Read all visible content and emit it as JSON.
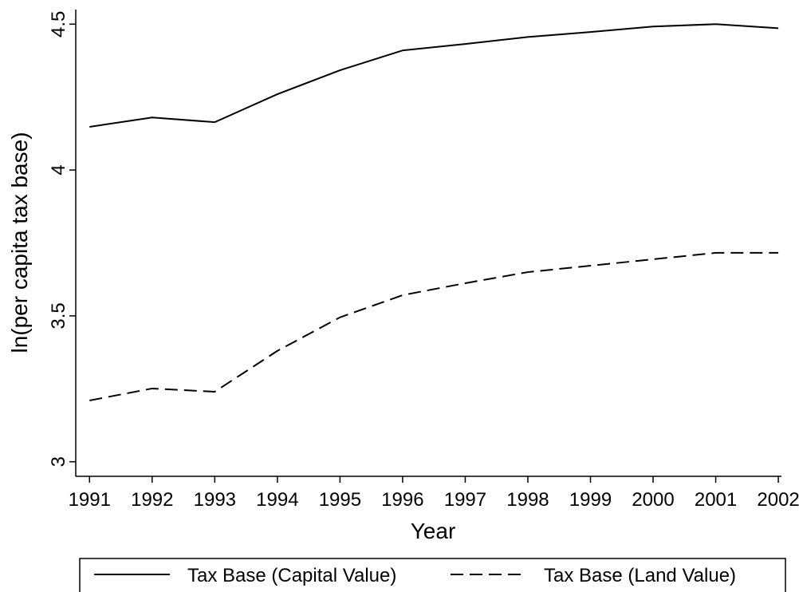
{
  "chart_data": {
    "type": "line",
    "x": [
      1991,
      1992,
      1993,
      1994,
      1995,
      1996,
      1997,
      1998,
      1999,
      2000,
      2001,
      2002
    ],
    "series": [
      {
        "name": "Tax Base (Capital Value)",
        "color": "#000000",
        "dash": "solid",
        "values": [
          4.148,
          4.18,
          4.164,
          4.26,
          4.342,
          4.41,
          4.432,
          4.456,
          4.473,
          4.492,
          4.5,
          4.486
        ]
      },
      {
        "name": "Tax Base (Land Value)",
        "color": "#000000",
        "dash": "dashed",
        "values": [
          3.21,
          3.251,
          3.24,
          3.38,
          3.495,
          3.571,
          3.612,
          3.65,
          3.672,
          3.694,
          3.716,
          3.716
        ]
      }
    ],
    "xlabel": "Year",
    "ylabel": "ln(per capita tax base)",
    "xlim": [
      1990.78,
      2002.05
    ],
    "xticks": [
      1991,
      1992,
      1993,
      1994,
      1995,
      1996,
      1997,
      1998,
      1999,
      2000,
      2001,
      2002
    ],
    "ylim": [
      2.95,
      4.55
    ],
    "yticks": [
      3,
      {
        "value": 3.5,
        "label": "3.5"
      },
      4,
      {
        "value": 4.5,
        "label": "4.5"
      }
    ],
    "legend": "bottom"
  }
}
